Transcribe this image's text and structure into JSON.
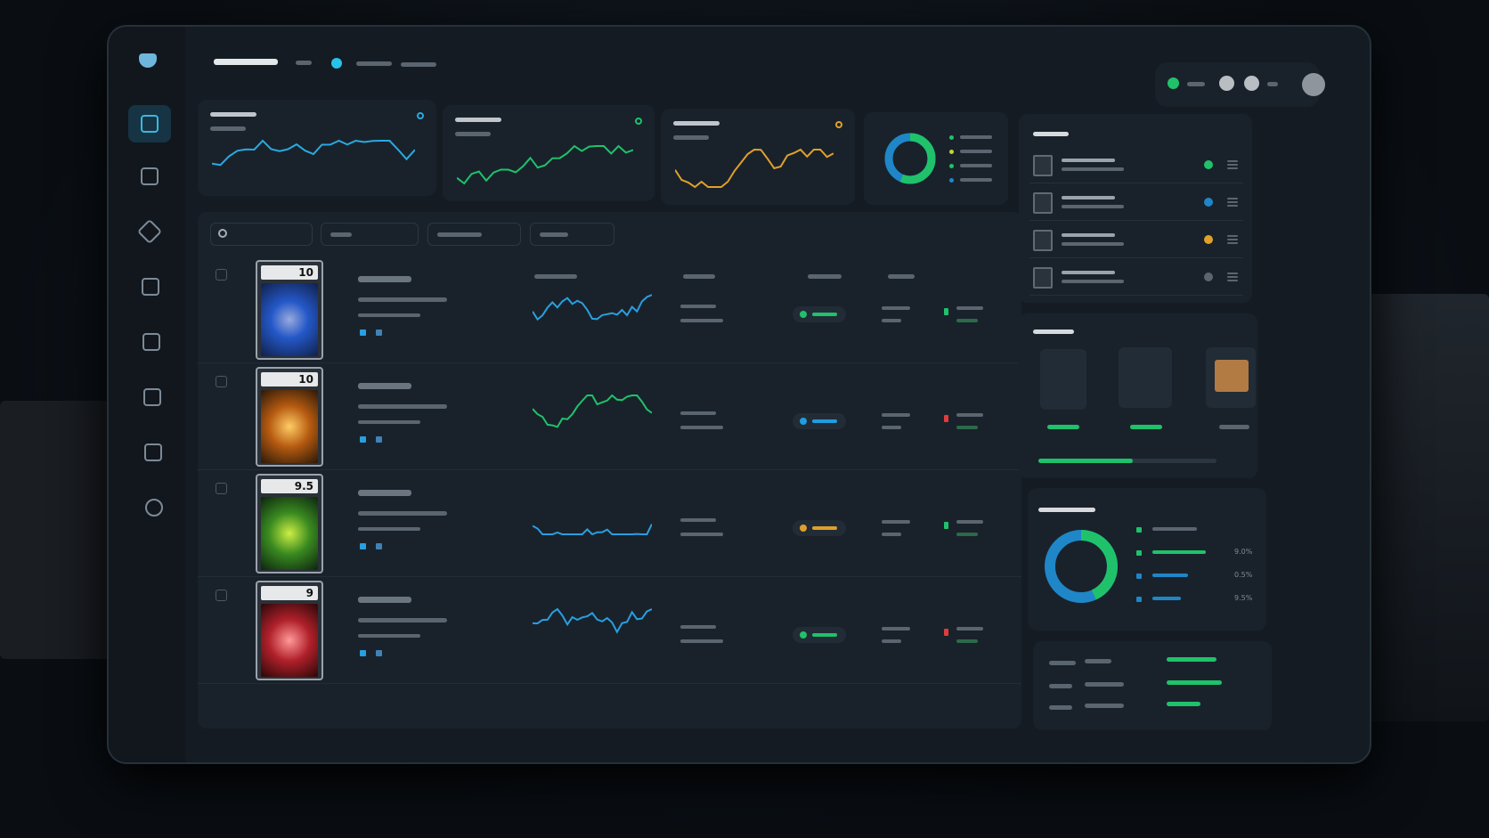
{
  "table": {
    "rows": [
      {
        "grade": "10"
      },
      {
        "grade": "10"
      },
      {
        "grade": "9.5"
      },
      {
        "grade": "9"
      }
    ]
  },
  "distribution": {
    "legend": [
      {
        "label": "9.0%"
      },
      {
        "label": "0.5%"
      },
      {
        "label": "9.5%"
      }
    ]
  }
}
